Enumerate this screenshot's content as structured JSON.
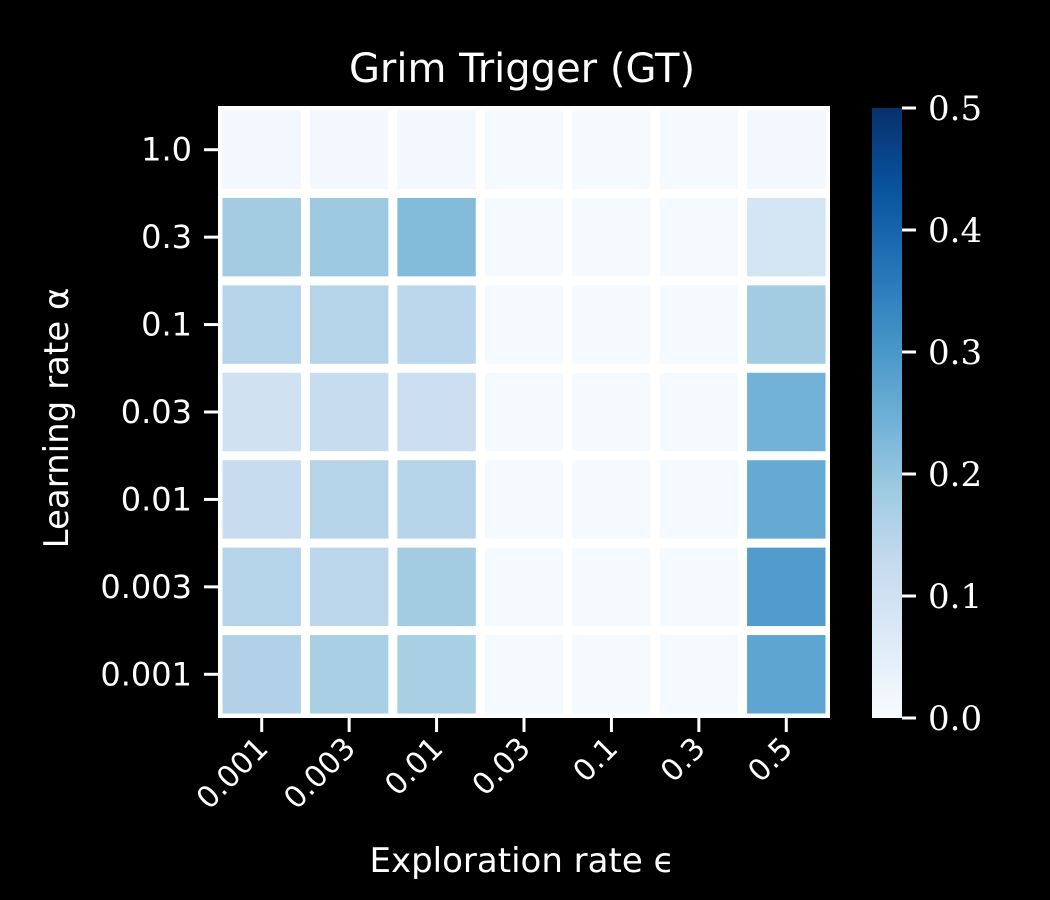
{
  "chart_data": {
    "type": "heatmap",
    "title": "Grim Trigger (GT)",
    "xlabel": "Exploration rate ϵ",
    "ylabel": "Learning rate α",
    "x_categories": [
      "0.001",
      "0.003",
      "0.01",
      "0.03",
      "0.1",
      "0.3",
      "0.5"
    ],
    "y_categories": [
      "1.0",
      "0.3",
      "0.1",
      "0.03",
      "0.01",
      "0.003",
      "0.001"
    ],
    "values": [
      [
        0.01,
        0.01,
        0.01,
        0.005,
        0.005,
        0.005,
        0.01
      ],
      [
        0.18,
        0.19,
        0.22,
        0.005,
        0.005,
        0.005,
        0.09
      ],
      [
        0.15,
        0.15,
        0.14,
        0.005,
        0.005,
        0.005,
        0.18
      ],
      [
        0.1,
        0.12,
        0.11,
        0.005,
        0.005,
        0.005,
        0.24
      ],
      [
        0.12,
        0.15,
        0.15,
        0.005,
        0.005,
        0.005,
        0.26
      ],
      [
        0.15,
        0.14,
        0.18,
        0.005,
        0.005,
        0.005,
        0.29
      ],
      [
        0.16,
        0.17,
        0.17,
        0.005,
        0.005,
        0.005,
        0.27
      ]
    ],
    "colorbar": {
      "min": 0.0,
      "max": 0.5,
      "ticks": [
        "0.0",
        "0.1",
        "0.2",
        "0.3",
        "0.4",
        "0.5"
      ],
      "colormap": "Blues"
    },
    "grid": false,
    "colors": {
      "background": "#000000",
      "cell_border": "#ffffff",
      "text": "#ffffff"
    }
  }
}
